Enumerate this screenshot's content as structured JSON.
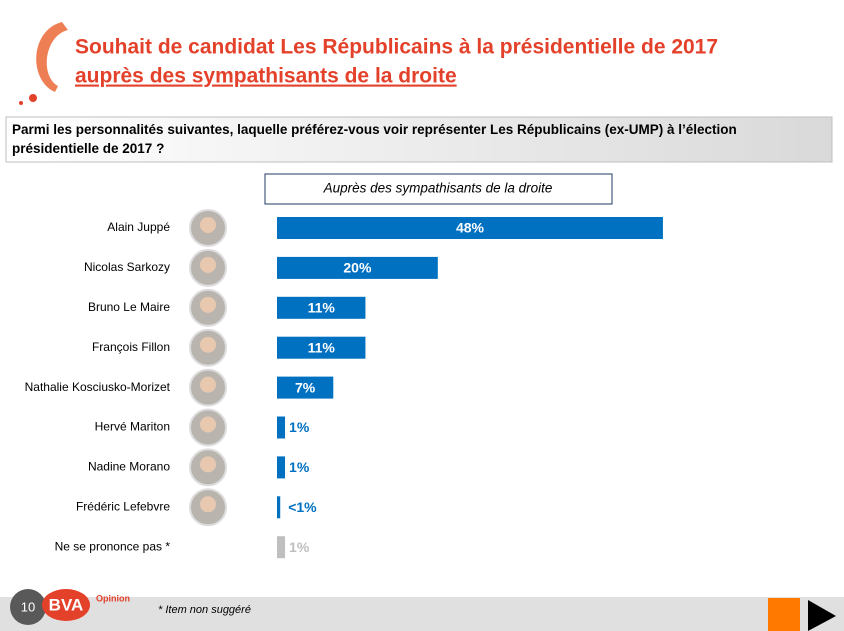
{
  "chart_data": {
    "type": "hbar",
    "title": "Souhait de candidat Les Républicains à la présidentielle de 2017",
    "subtitle": "auprès des sympathisants de la droite",
    "question": "Parmi les personnalités suivantes, laquelle préférez-vous voir représenter Les Républicains (ex-UMP) à l’élection présidentielle de 2017 ?",
    "series_label": "Auprès des sympathisants de la droite",
    "categories": [
      "Alain Juppé",
      "Nicolas Sarkozy",
      "Bruno Le Maire",
      "François Fillon",
      "Nathalie Kosciusko-Morizet",
      "Hervé Mariton",
      "Nadine Morano",
      "Frédéric Lefebvre",
      "Ne se prononce pas *"
    ],
    "values": [
      48,
      20,
      11,
      11,
      7,
      1,
      1,
      0.4,
      1
    ],
    "value_labels": [
      "48%",
      "20%",
      "11%",
      "11%",
      "7%",
      "1%",
      "1%",
      "<1%",
      "1%"
    ],
    "colors": [
      "#0070c0",
      "#0070c0",
      "#0070c0",
      "#0070c0",
      "#0070c0",
      "#0070c0",
      "#0070c0",
      "#0070c0",
      "#bfbfbf"
    ],
    "footnote": "* Item non suggéré",
    "page_number": "10",
    "brand": "BVA",
    "brand_tag": "Opinion"
  }
}
